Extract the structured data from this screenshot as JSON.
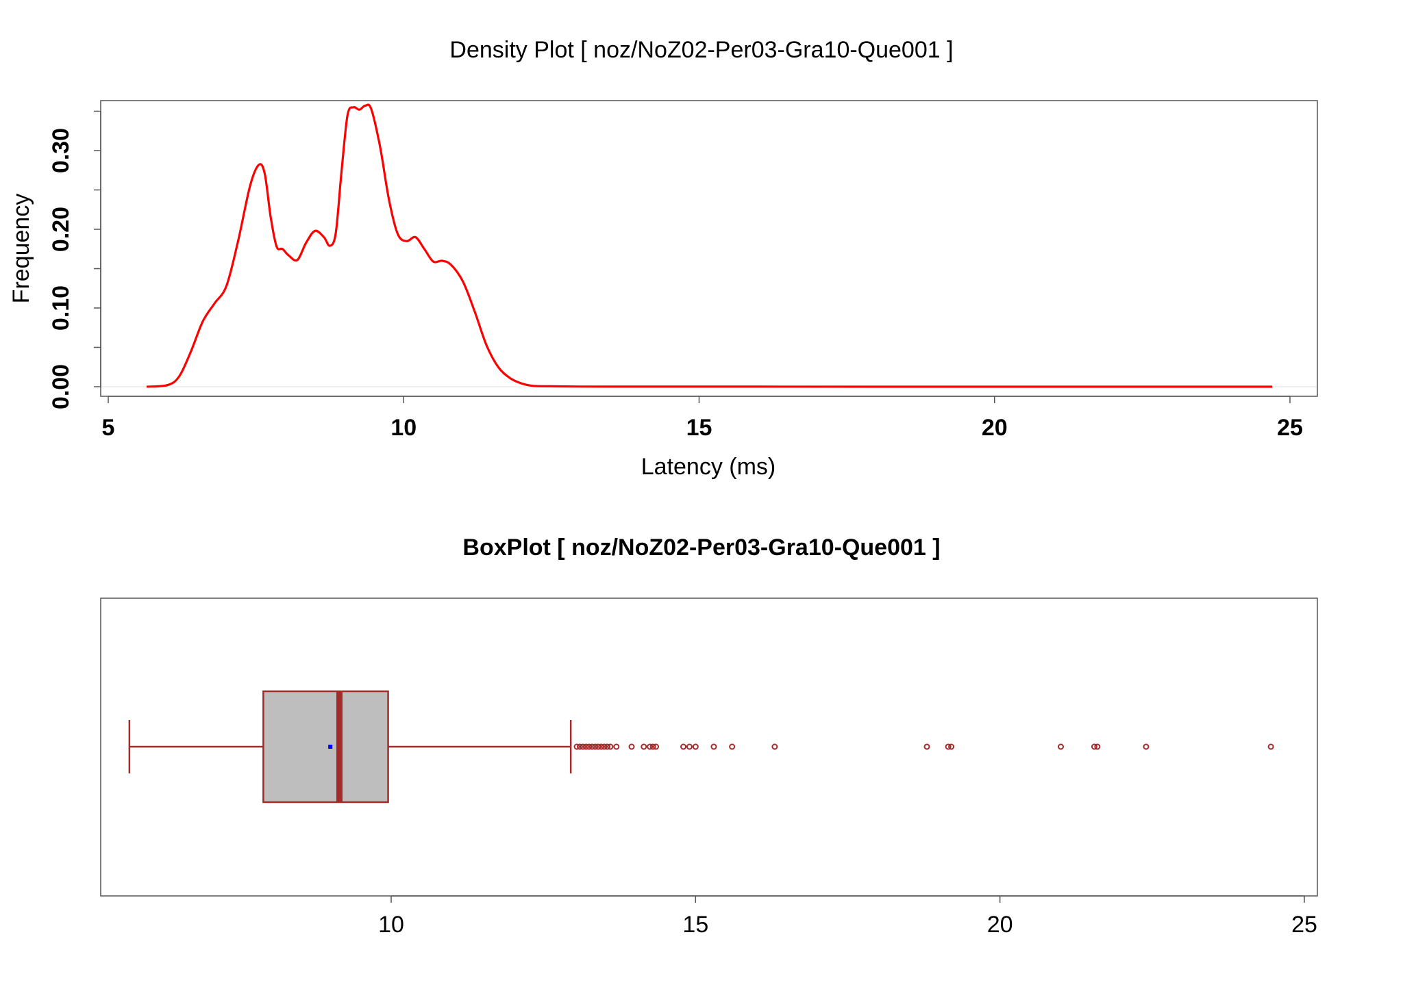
{
  "chart_data": [
    {
      "type": "line",
      "title": "Density Plot [ noz/NoZ02-Per03-Gra10-Que001 ]",
      "xlabel": "Latency (ms)",
      "ylabel": "Frequency",
      "xlim": [
        5,
        25
      ],
      "ylim": [
        0,
        0.36
      ],
      "x_ticks": [
        "5",
        "10",
        "15",
        "20",
        "25"
      ],
      "y_ticks": [
        "0.00",
        "0.10",
        "0.20",
        "0.30"
      ],
      "series": [
        {
          "color": "#ff0000",
          "x": [
            5.65,
            6.0,
            6.2,
            6.4,
            6.6,
            6.8,
            7.0,
            7.2,
            7.4,
            7.55,
            7.65,
            7.75,
            7.85,
            7.95,
            8.05,
            8.2,
            8.35,
            8.5,
            8.65,
            8.75,
            8.85,
            8.95,
            9.05,
            9.15,
            9.25,
            9.35,
            9.45,
            9.6,
            9.75,
            9.9,
            10.05,
            10.2,
            10.35,
            10.5,
            10.65,
            10.8,
            11.0,
            11.2,
            11.4,
            11.6,
            11.8,
            12.0,
            12.2,
            12.5,
            13.0,
            14.0,
            16.0,
            19.0,
            22.0,
            24.7
          ],
          "y": [
            0.0,
            0.002,
            0.013,
            0.045,
            0.083,
            0.106,
            0.128,
            0.186,
            0.255,
            0.282,
            0.27,
            0.215,
            0.178,
            0.175,
            0.167,
            0.161,
            0.183,
            0.198,
            0.19,
            0.179,
            0.195,
            0.275,
            0.345,
            0.355,
            0.352,
            0.357,
            0.353,
            0.305,
            0.238,
            0.194,
            0.185,
            0.19,
            0.175,
            0.159,
            0.16,
            0.155,
            0.134,
            0.096,
            0.053,
            0.025,
            0.011,
            0.004,
            0.001,
            0.0005,
            0.0002,
            0.0001,
            0.0001,
            0.0,
            0.0,
            0.0
          ]
        }
      ],
      "grid": false,
      "legend": "none"
    },
    {
      "type": "box",
      "title": "BoxPlot [ noz/NoZ02-Per03-Gra10-Que001 ]",
      "orientation": "horizontal",
      "xlim": [
        5.5,
        25.0
      ],
      "x_ticks": [
        "10",
        "15",
        "20",
        "25"
      ],
      "colors": {
        "box_fill": "#bebebe",
        "stroke": "#a52a2a",
        "mean": "#0000ff"
      },
      "whisker_low": 5.7,
      "q1": 7.9,
      "median": 9.15,
      "q3": 9.95,
      "whisker_high": 12.95,
      "mean": 9.0,
      "outliers": [
        13.05,
        13.1,
        13.15,
        13.2,
        13.25,
        13.3,
        13.35,
        13.4,
        13.45,
        13.5,
        13.55,
        13.6,
        13.7,
        13.95,
        14.15,
        14.25,
        14.3,
        14.35,
        14.8,
        14.9,
        15.0,
        15.3,
        15.6,
        16.3,
        18.8,
        19.15,
        19.2,
        21.0,
        21.55,
        21.6,
        22.4,
        24.45
      ]
    }
  ]
}
